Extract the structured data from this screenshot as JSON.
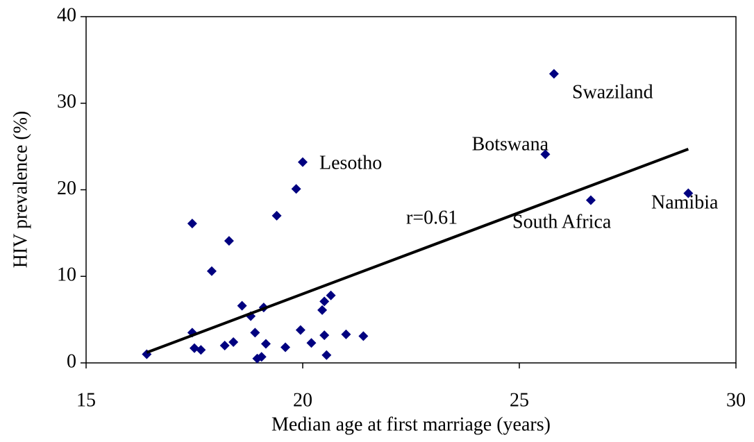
{
  "chart_data": {
    "type": "scatter",
    "x_label": "Median age at first marriage (years)",
    "y_label": "HIV prevalence (%)",
    "xlim": [
      15,
      30
    ],
    "xticks": [
      15,
      20,
      25,
      30
    ],
    "ylim": [
      0,
      40
    ],
    "yticks": [
      0,
      10,
      20,
      30,
      40
    ],
    "color": "#000080",
    "series": [
      {
        "x": [
          16.4,
          17.45,
          17.45,
          17.5,
          17.65,
          17.9,
          18.2,
          18.3,
          18.4,
          18.6,
          18.8,
          18.9,
          18.95,
          19.05,
          19.1,
          19.15,
          19.4,
          19.6,
          19.85,
          19.95,
          20.0,
          20.2,
          20.45,
          20.5,
          20.5,
          20.55,
          20.65,
          21.0,
          21.4,
          25.6,
          25.8,
          26.65,
          28.9
        ],
        "values": [
          1.0,
          16.1,
          3.5,
          1.7,
          1.5,
          10.6,
          2.0,
          14.1,
          2.4,
          6.6,
          5.4,
          3.5,
          0.5,
          0.7,
          6.4,
          2.2,
          17.0,
          1.8,
          20.1,
          3.8,
          23.2,
          2.3,
          6.1,
          7.1,
          3.2,
          0.9,
          7.8,
          3.3,
          3.1,
          24.1,
          33.4,
          18.8,
          19.6
        ]
      }
    ],
    "trendline": {
      "x": [
        16.4,
        28.9
      ],
      "values": [
        1.2,
        24.7
      ],
      "color": "#000000"
    },
    "annotations": [
      "Swaziland",
      "Botswana",
      "Lesotho",
      "South Africa",
      "Namibia",
      "r=0.61"
    ]
  }
}
